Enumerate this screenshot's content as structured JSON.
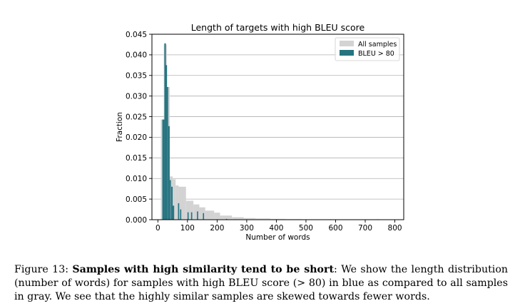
{
  "chart_data": {
    "type": "bar",
    "title": "Length of targets with high BLEU score",
    "xlabel": "Number of words",
    "ylabel": "Fraction",
    "xlim": [
      -20,
      830
    ],
    "ylim": [
      0,
      0.045
    ],
    "xticks": [
      "0",
      "100",
      "200",
      "300",
      "400",
      "500",
      "600",
      "700",
      "800"
    ],
    "xtick_values": [
      0,
      100,
      200,
      300,
      400,
      500,
      600,
      700,
      800
    ],
    "yticks": [
      "0.000",
      "0.005",
      "0.010",
      "0.015",
      "0.020",
      "0.025",
      "0.030",
      "0.035",
      "0.040",
      "0.045"
    ],
    "ytick_values": [
      0,
      0.005,
      0.01,
      0.015,
      0.02,
      0.025,
      0.03,
      0.035,
      0.04,
      0.045
    ],
    "grid": true,
    "legend_position": "top-right",
    "series": [
      {
        "name": "All samples",
        "color": "#d3d3d3",
        "bins": [
          [
            10,
            20,
            0.0243
          ],
          [
            20,
            30,
            0.0425
          ],
          [
            30,
            40,
            0.0322
          ],
          [
            40,
            50,
            0.0105
          ],
          [
            50,
            60,
            0.0098
          ],
          [
            60,
            70,
            0.0083
          ],
          [
            70,
            95,
            0.008
          ],
          [
            95,
            120,
            0.0046
          ],
          [
            120,
            140,
            0.0037
          ],
          [
            140,
            160,
            0.003
          ],
          [
            160,
            190,
            0.0022
          ],
          [
            190,
            210,
            0.0017
          ],
          [
            210,
            250,
            0.001
          ],
          [
            250,
            290,
            0.0006
          ],
          [
            290,
            330,
            0.0004
          ],
          [
            330,
            380,
            0.0003
          ],
          [
            380,
            430,
            0.0002
          ],
          [
            430,
            480,
            0.00015
          ],
          [
            480,
            560,
            0.0001
          ],
          [
            560,
            650,
            0.0001
          ],
          [
            650,
            750,
            0.0001
          ],
          [
            750,
            800,
            5e-05
          ]
        ]
      },
      {
        "name": "BLEU > 80",
        "color": "#267481",
        "bins": [
          [
            15,
            22,
            0.0243
          ],
          [
            22,
            27,
            0.0428
          ],
          [
            27,
            31,
            0.0375
          ],
          [
            31,
            35,
            0.0322
          ],
          [
            35,
            40,
            0.0227
          ],
          [
            40,
            44,
            0.0096
          ],
          [
            45,
            50,
            0.008
          ],
          [
            50,
            55,
            0.0034
          ],
          [
            68,
            72,
            0.004
          ],
          [
            75,
            79,
            0.0025
          ],
          [
            100,
            104,
            0.0018
          ],
          [
            112,
            116,
            0.0018
          ],
          [
            132,
            136,
            0.002
          ],
          [
            152,
            156,
            0.0016
          ],
          [
            230,
            234,
            0.0002
          ],
          [
            260,
            264,
            0.0001
          ],
          [
            400,
            404,
            0.0001
          ],
          [
            480,
            485,
            0.0001
          ],
          [
            580,
            585,
            0.0001
          ],
          [
            740,
            745,
            0.0001
          ]
        ]
      }
    ]
  },
  "caption": {
    "label": "Figure 13: ",
    "bold": "Samples with high similarity tend to be short",
    "text": ": We show the length distribution (number of words) for samples with high BLEU score (> 80) in blue as compared to all samples in gray. We see that the highly similar samples are skewed towards fewer words."
  }
}
